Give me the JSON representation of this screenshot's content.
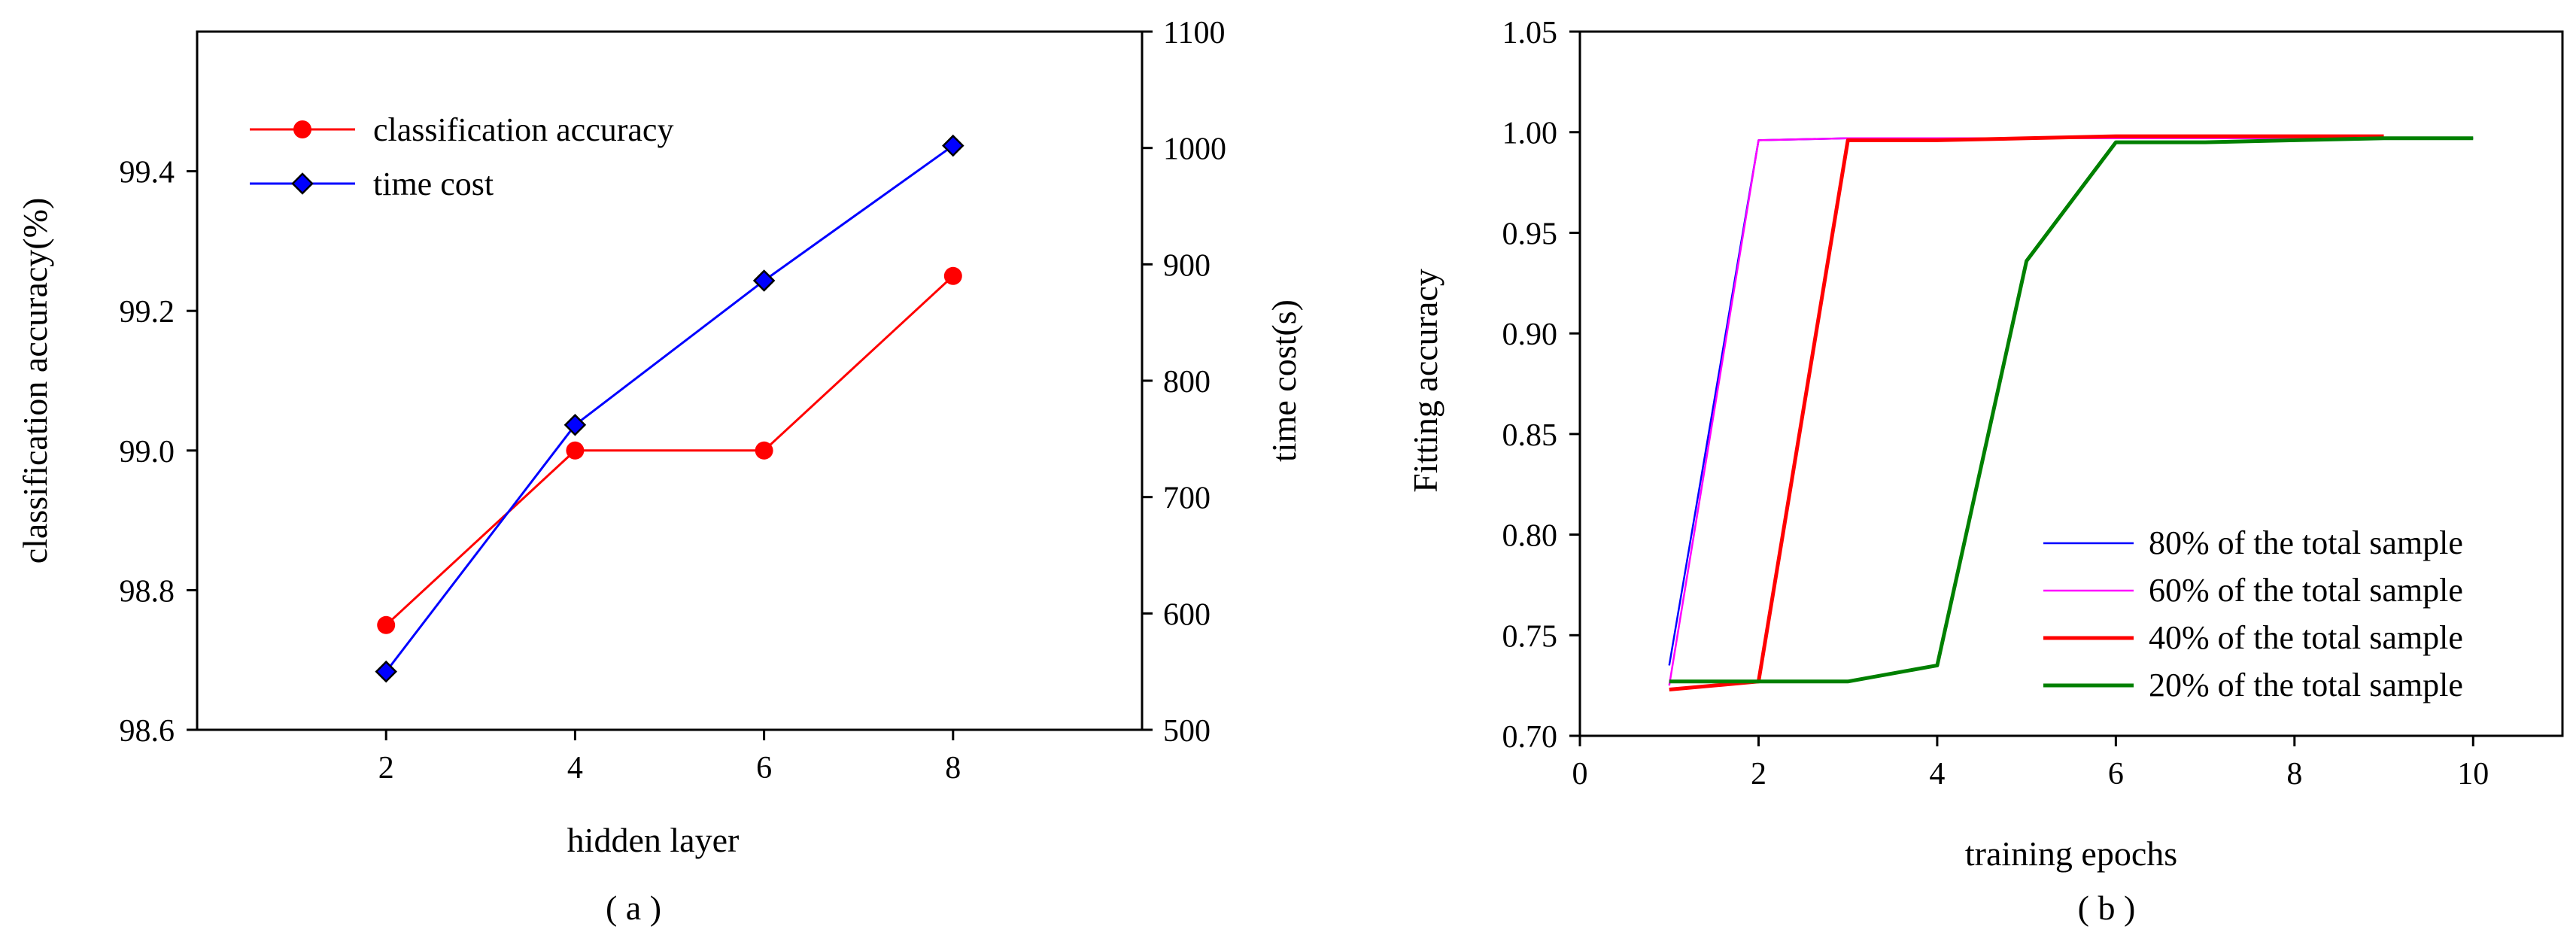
{
  "chart_data": [
    {
      "id": "a",
      "type": "line",
      "caption": "( a )",
      "xlabel": "hidden layer",
      "ylabel": "classification accuracy(%)",
      "y2label": "time cost(s)",
      "xlim": [
        0,
        10
      ],
      "ylim": [
        98.6,
        99.6
      ],
      "y2lim": [
        500,
        1100
      ],
      "xticks": [
        "2",
        "4",
        "6",
        "8"
      ],
      "yticks": [
        "98.6",
        "98.8",
        "99.0",
        "99.2",
        "99.4"
      ],
      "y2ticks": [
        "500",
        "600",
        "700",
        "800",
        "900",
        "1000",
        "1100"
      ],
      "legend_position": "top-left",
      "series": [
        {
          "name": "classification accuracy",
          "axis": "left",
          "color": "#ff0000",
          "marker": "circle",
          "x": [
            2,
            4,
            6,
            8
          ],
          "values": [
            98.75,
            99.0,
            99.0,
            99.25
          ]
        },
        {
          "name": "time cost",
          "axis": "right",
          "color": "#0000ff",
          "marker": "diamond",
          "x": [
            2,
            4,
            6,
            8
          ],
          "values": [
            550,
            762,
            886,
            1002
          ]
        }
      ]
    },
    {
      "id": "b",
      "type": "line",
      "caption": "( b )",
      "xlabel": "training epochs",
      "ylabel": "Fitting accuracy",
      "xlim": [
        0,
        11
      ],
      "ylim": [
        0.7,
        1.05
      ],
      "xticks": [
        "0",
        "2",
        "4",
        "6",
        "8",
        "10"
      ],
      "yticks": [
        "0.70",
        "0.75",
        "0.80",
        "0.85",
        "0.90",
        "0.95",
        "1.00",
        "1.05"
      ],
      "legend_position": "bottom-right",
      "series": [
        {
          "name": "80% of the total sample",
          "color": "#0000ff",
          "x": [
            1,
            2,
            3,
            4,
            5,
            6,
            7,
            8,
            9,
            10
          ],
          "values": [
            0.735,
            0.996,
            0.997,
            0.997,
            0.997,
            0.997,
            0.997,
            0.997,
            0.997,
            0.997
          ]
        },
        {
          "name": "60% of the total sample",
          "color": "#ff00ff",
          "x": [
            1,
            2,
            3,
            4,
            5,
            6,
            7,
            8,
            9,
            10
          ],
          "values": [
            0.725,
            0.996,
            0.997,
            0.997,
            0.997,
            0.997,
            0.997,
            0.997,
            0.997,
            0.997
          ]
        },
        {
          "name": "40% of the total sample",
          "color": "#ff0000",
          "x": [
            1,
            2,
            3,
            4,
            5,
            6,
            7,
            8,
            9
          ],
          "values": [
            0.723,
            0.727,
            0.996,
            0.996,
            0.997,
            0.998,
            0.998,
            0.998,
            0.998
          ]
        },
        {
          "name": "20% of the total sample",
          "color": "#008000",
          "x": [
            1,
            2,
            3,
            4,
            5,
            6,
            7,
            8,
            9,
            10
          ],
          "values": [
            0.727,
            0.727,
            0.727,
            0.735,
            0.936,
            0.995,
            0.995,
            0.996,
            0.997,
            0.997
          ]
        }
      ]
    }
  ]
}
